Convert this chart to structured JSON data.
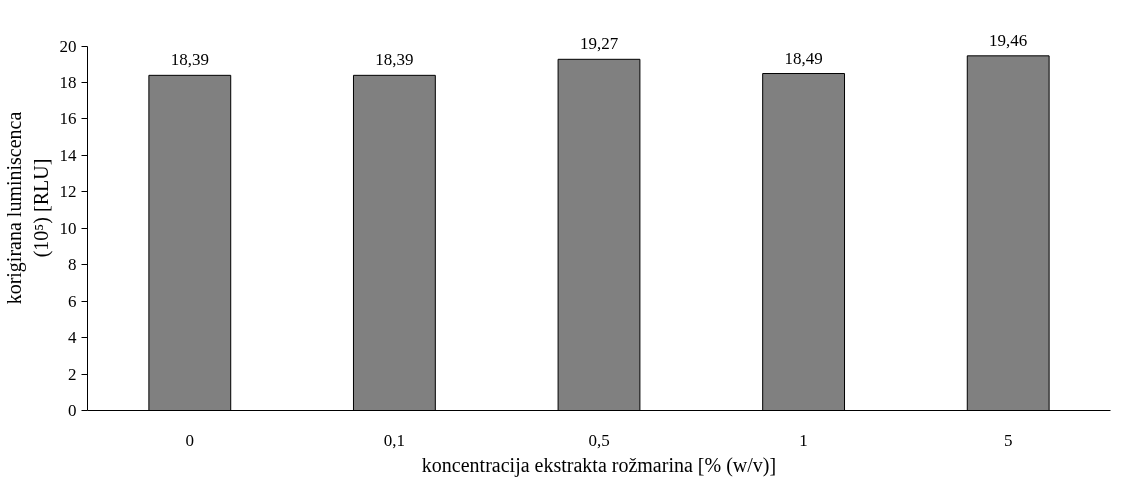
{
  "chart_data": {
    "type": "bar",
    "xlabel": "koncentracija ekstrakta rožmarina [% (w/v)]",
    "ylabel": "korigirana luminiscenca\n(10⁵) [RLU]",
    "categories": [
      "0",
      "0,1",
      "0,5",
      "1",
      "5"
    ],
    "values": [
      18.39,
      18.39,
      19.27,
      18.49,
      19.46
    ],
    "value_labels": [
      "18,39",
      "18,39",
      "19,27",
      "18,49",
      "19,46"
    ],
    "color": "#808080",
    "ylim": [
      0,
      20
    ],
    "yticks": [
      0,
      2,
      4,
      6,
      8,
      10,
      12,
      14,
      16,
      18,
      20
    ],
    "grid": false
  }
}
